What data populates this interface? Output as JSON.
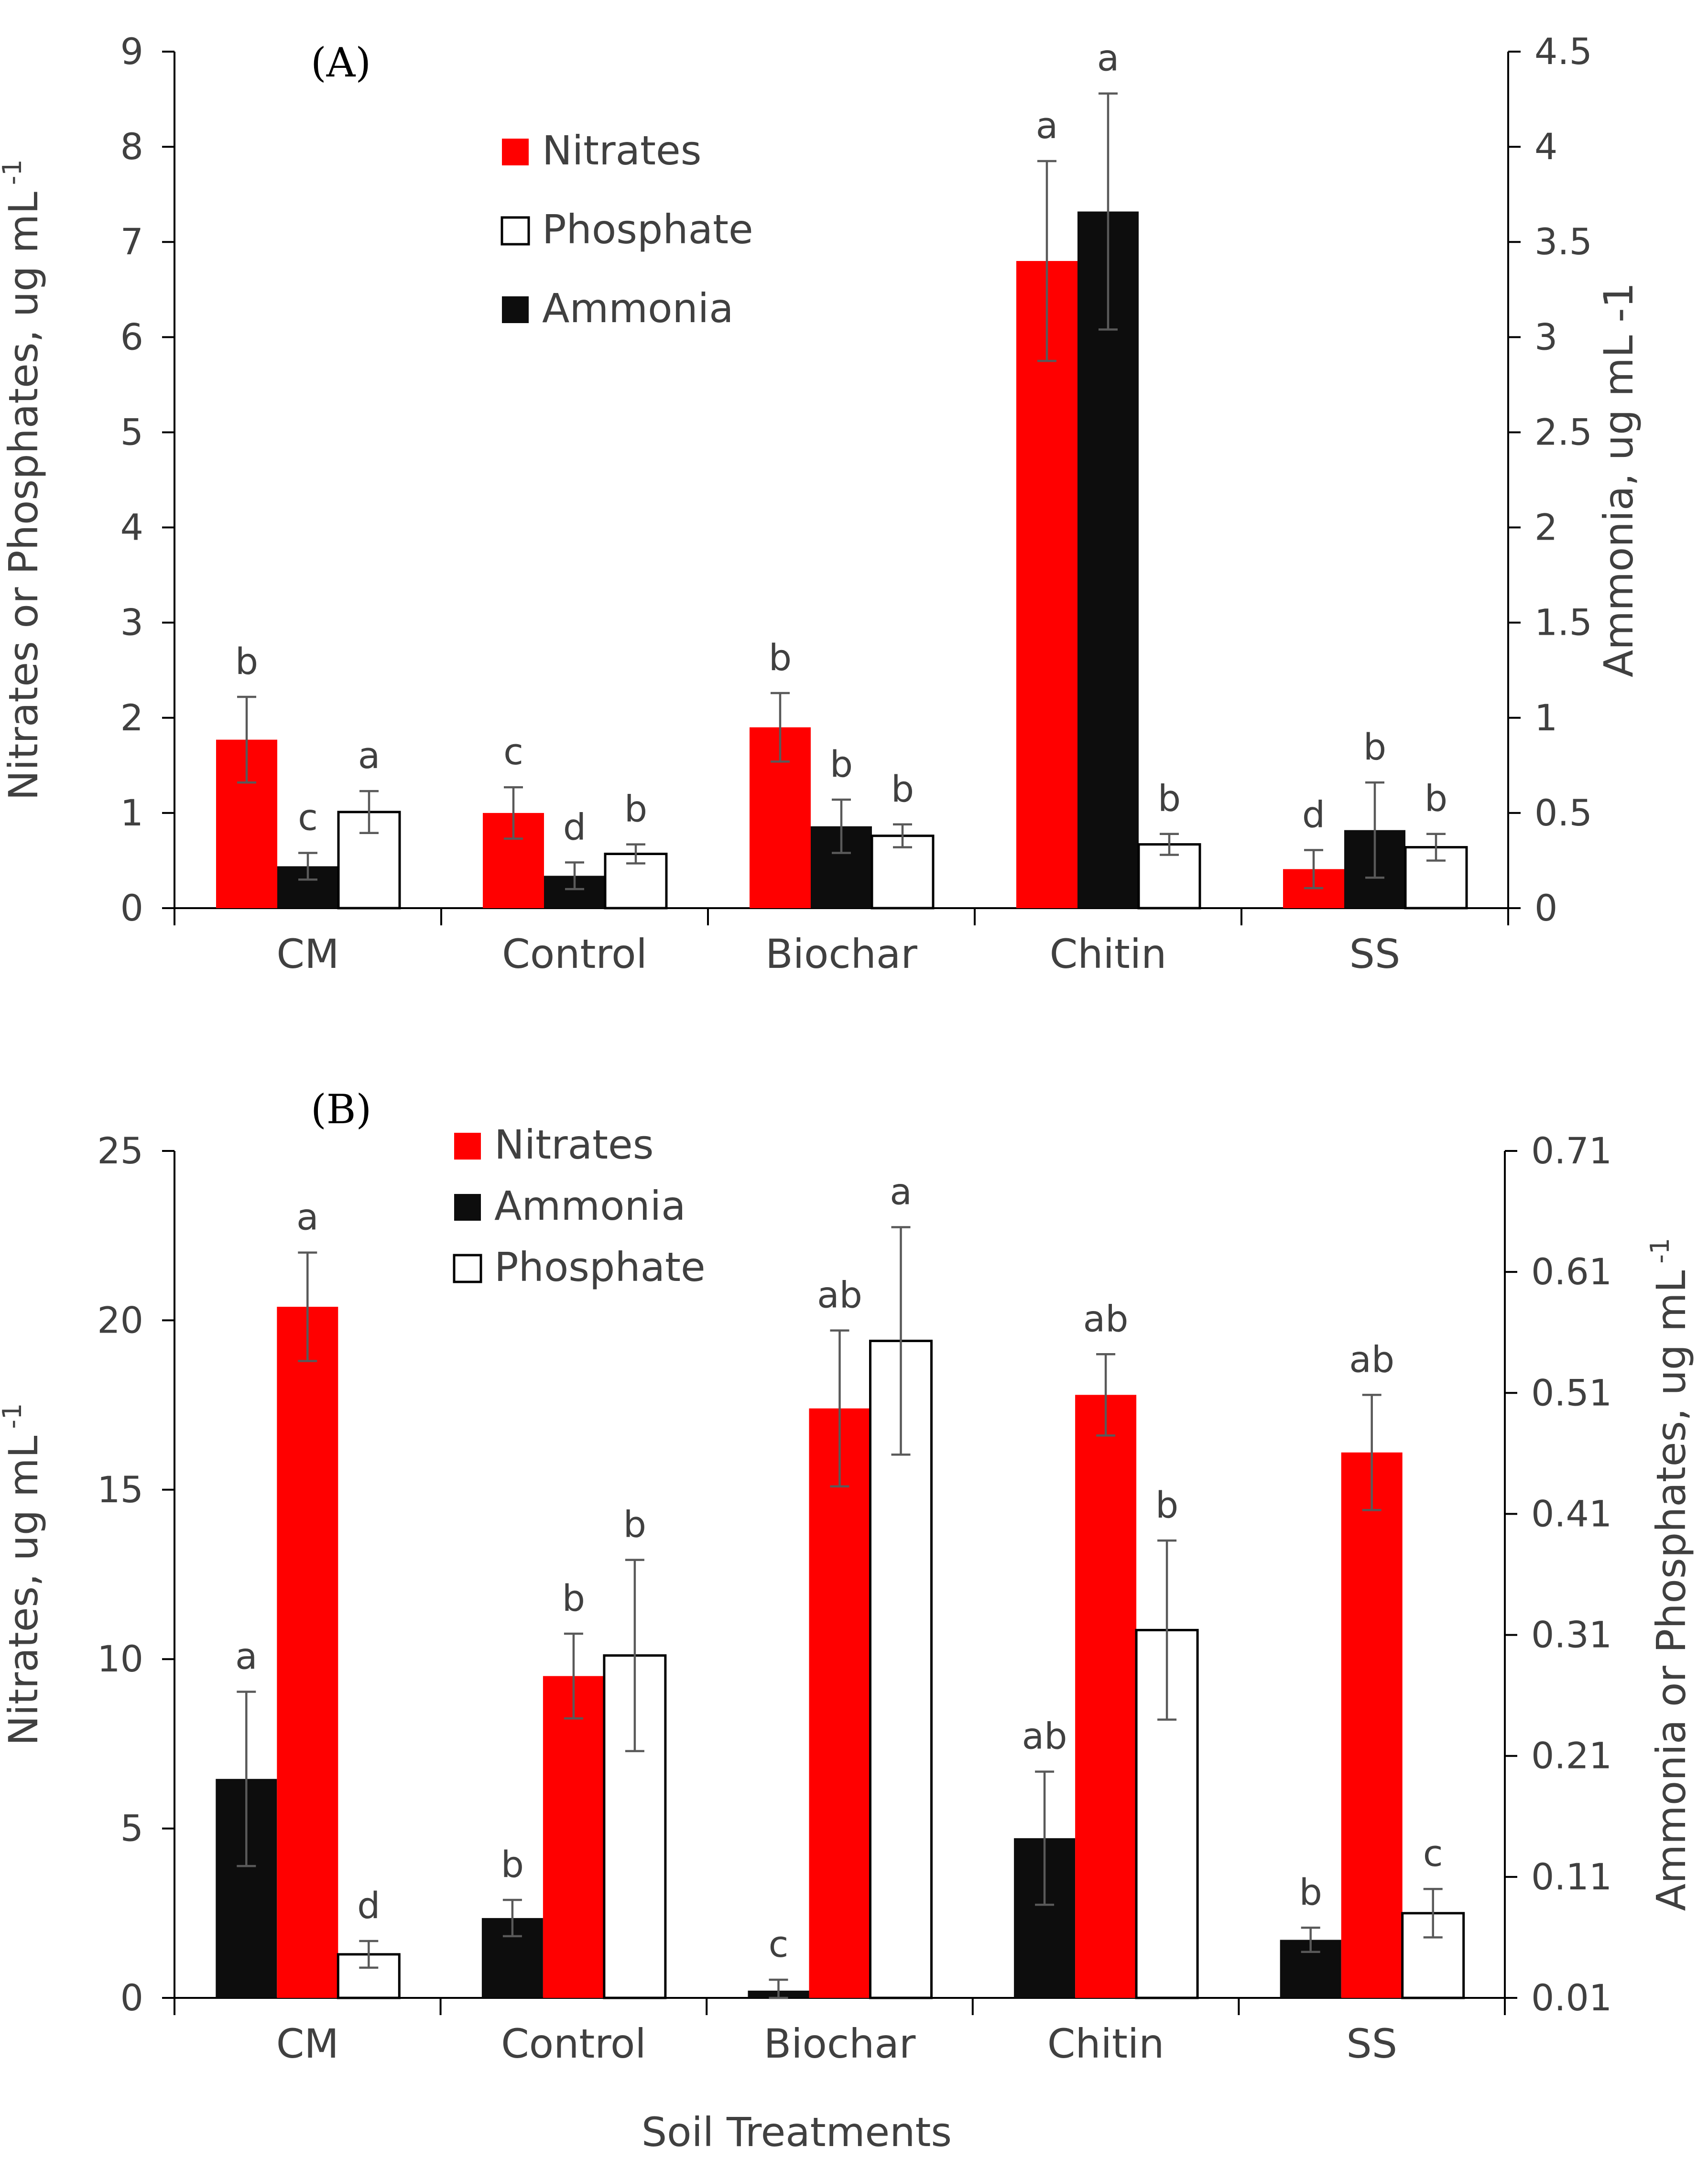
{
  "colors": {
    "Nitrates": "#ff0000",
    "Phosphate": "#ffffff",
    "Ammonia": "#0d0d0d",
    "error_bar": "#595959"
  },
  "chart_data": [
    {
      "type": "bar",
      "panel_label": "(A)",
      "categories": [
        "CM",
        "Control",
        "Biochar",
        "Chitin",
        "SS"
      ],
      "legend": [
        "Nitrates",
        "Phosphate",
        "Ammonia"
      ],
      "legend_placement": "top-left",
      "bar_order": [
        "Nitrates",
        "Ammonia",
        "Phosphate"
      ],
      "ylabel": "Nitrates or Phosphates, ug mL",
      "ylabel_superscript": "-1",
      "ylim": [
        0,
        9
      ],
      "yticks": [
        "0",
        "1",
        "2",
        "3",
        "4",
        "5",
        "6",
        "7",
        "8",
        "9"
      ],
      "y2label": "Ammonia, ug mL -1",
      "y2lim": [
        0,
        4.5
      ],
      "y2ticks": [
        "0",
        "0.5",
        "1",
        "1.5",
        "2",
        "2.5",
        "3",
        "3.5",
        "4",
        "4.5"
      ],
      "grid": false,
      "series": [
        {
          "name": "Nitrates",
          "axis": "left",
          "values": [
            1.77,
            1.0,
            1.9,
            6.8,
            0.41
          ],
          "errors": [
            0.45,
            0.27,
            0.36,
            1.05,
            0.2
          ],
          "labels": [
            "b",
            "c",
            "b",
            "a",
            "d"
          ]
        },
        {
          "name": "Ammonia",
          "axis": "right",
          "values": [
            0.22,
            0.17,
            0.43,
            3.66,
            0.41
          ],
          "errors": [
            0.07,
            0.07,
            0.14,
            0.62,
            0.25
          ],
          "labels": [
            "c",
            "d",
            "b",
            "a",
            "b"
          ]
        },
        {
          "name": "Phosphate",
          "axis": "left",
          "values": [
            1.01,
            0.57,
            0.76,
            0.67,
            0.64
          ],
          "errors": [
            0.22,
            0.1,
            0.12,
            0.11,
            0.14
          ],
          "labels": [
            "a",
            "b",
            "b",
            "b",
            "b"
          ]
        }
      ]
    },
    {
      "type": "bar",
      "panel_label": "(B)",
      "categories": [
        "CM",
        "Control",
        "Biochar",
        "Chitin",
        "SS"
      ],
      "legend": [
        "Nitrates",
        "Ammonia",
        "Phosphate"
      ],
      "legend_placement": "top-left",
      "bar_order": [
        "Ammonia",
        "Nitrates",
        "Phosphate"
      ],
      "xlabel": "Soil Treatments",
      "ylabel": "Nitrates, ug mL",
      "ylabel_superscript": "-1",
      "ylim": [
        0,
        25
      ],
      "yticks": [
        "0",
        "5",
        "10",
        "15",
        "20",
        "25"
      ],
      "y2label": "Ammonia  or Phosphates, ug mL",
      "y2label_superscript": "-1",
      "y2lim": [
        0.01,
        0.71
      ],
      "y2ticks": [
        "0.01",
        "0.11",
        "0.21",
        "0.31",
        "0.41",
        "0.51",
        "0.61",
        "0.71"
      ],
      "grid": false,
      "series": [
        {
          "name": "Ammonia",
          "axis": "right",
          "values": [
            0.191,
            0.076,
            0.016,
            0.142,
            0.058
          ],
          "errors": [
            0.072,
            0.015,
            0.009,
            0.055,
            0.01
          ],
          "labels": [
            "a",
            "b",
            "c",
            "ab",
            "b"
          ]
        },
        {
          "name": "Nitrates",
          "axis": "left",
          "values": [
            20.4,
            9.5,
            17.4,
            17.8,
            16.1
          ],
          "errors": [
            1.6,
            1.25,
            2.3,
            1.2,
            1.7
          ],
          "labels": [
            "a",
            "b",
            "ab",
            "ab",
            "ab"
          ]
        },
        {
          "name": "Phosphate",
          "axis": "right",
          "values": [
            0.046,
            0.293,
            0.553,
            0.314,
            0.08
          ],
          "errors": [
            0.011,
            0.079,
            0.094,
            0.074,
            0.02
          ],
          "labels": [
            "d",
            "b",
            "a",
            "b",
            "c"
          ]
        }
      ]
    }
  ]
}
